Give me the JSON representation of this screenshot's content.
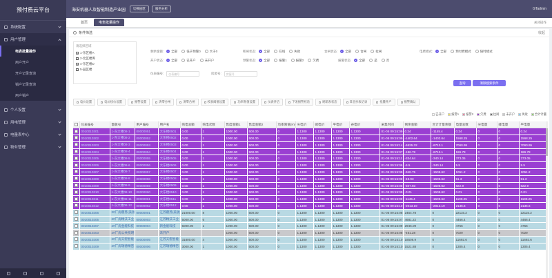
{
  "app": {
    "logo": "预付费云平台",
    "org": "海安机器人及智能制造产业园",
    "btn_switch": "切换园区",
    "btn_time": "服务分析",
    "user": "GTadmin"
  },
  "sidebar": {
    "items": [
      "系统配置",
      "用户管理",
      "个人设置",
      "用电管理",
      "电量表中心",
      "物业管理"
    ],
    "subitems": [
      "电表批量操作",
      "用户开户",
      "开户记录查询",
      "销户记录查询",
      "用户销户"
    ]
  },
  "tabs": {
    "home": "首页",
    "active": "电表批量操作",
    "close_all": "关闭操作"
  },
  "filter": {
    "head": "条件筛选",
    "collapse": "收起",
    "tree_title": "请选择区域",
    "tree": [
      "1-东区楼A",
      "2-北区楼库",
      "4-东区楼D",
      "5-园区楼"
    ],
    "row1": {
      "l1": "剩余金额:",
      "o1": [
        "全部",
        "低于预警0",
        "大于0"
      ],
      "l2": "断闸状态:",
      "o2": [
        "全部",
        "在线",
        "失败"
      ],
      "l3": "合闸状态:",
      "o3": [
        "全部",
        "合闸",
        "拉闸"
      ],
      "l4": "电费模式:",
      "o4": [
        "全部",
        "预付费模式",
        "随时模式"
      ]
    },
    "row2": {
      "l1": "开户状态:",
      "o1": [
        "全部",
        "已开户",
        "未开户"
      ],
      "l2": "预警状态:",
      "o2": [
        "全部",
        "报警1",
        "报警2",
        "欠费"
      ],
      "l3": "报警状态:",
      "o3": [
        "全部",
        "是",
        "否"
      ]
    },
    "row3": {
      "l1": "仪表编号:",
      "p1": "仪表编号",
      "l2": "房屋号:",
      "p2": "房屋号"
    },
    "search": "查询",
    "clear": "清除搜索条件"
  },
  "toolbar": [
    "电价设置",
    "电价核价设置",
    "报警设置",
    "清零分闸",
    "清零合闸",
    "校表阈值设置",
    "功率限值设置",
    "仪表开启",
    "下发报警校验",
    "刷新表状态",
    "日志抄表记录",
    "批量开户",
    "报警确认"
  ],
  "legend": [
    "已开户",
    "报警1",
    "报警2",
    "欠费",
    "拉闸",
    "未开户",
    "失败",
    "合计计量"
  ],
  "table": {
    "headers": [
      "仪表编号",
      "面板号",
      "用户编号",
      "用户名",
      "购电总额",
      "购电次数",
      "售度金额1",
      "售度金额2",
      "功率限值(KW)",
      "尖电价",
      "峰电价",
      "平电价",
      "谷电价",
      "采集时间",
      "剩余金额",
      "合计计量余额",
      "电量总数",
      "尖电量",
      "峰电量",
      "平电量"
    ],
    "rows": [
      {
        "c": "purple",
        "v": [
          "0010010301",
          "1-东大楼08-1",
          "00000051",
          "大东楼0501",
          "0.00",
          "1",
          "1000.00",
          "500.00",
          "0",
          "1.1300",
          "1.1300",
          "1.1300",
          "1.1300",
          "01-05 09:15:09",
          "0.24",
          "-1145.4",
          "0.24",
          "0",
          "0",
          "0.24"
        ]
      },
      {
        "c": "purple",
        "v": [
          "0010010302",
          "1-东大楼08-2",
          "00000052",
          "大东楼0502",
          "0.00",
          "1",
          "1000.00",
          "500.00",
          "0",
          "1.1300",
          "1.1300",
          "1.1300",
          "1.1300",
          "01-05 09:15:09",
          "-1402.64",
          "-1402.64",
          "1568.25",
          "0",
          "0",
          "1568.25"
        ]
      },
      {
        "c": "purple",
        "v": [
          "0010010303",
          "1-东大楼08-3",
          "00000053",
          "大东楼0503",
          "0.00",
          "1",
          "1000.00",
          "500.00",
          "0",
          "1.1300",
          "1.1300",
          "1.1300",
          "1.1300",
          "01-05 09:15:14",
          "-6525.32",
          "-6712.1",
          "7060.95",
          "0",
          "0",
          "7060.95"
        ]
      },
      {
        "c": "purple",
        "v": [
          "0010010304",
          "1-东大楼08-4",
          "00000054",
          "大东楼0504",
          "0.00",
          "1",
          "1000.00",
          "500.00",
          "0",
          "1.1300",
          "1.1300",
          "1.1300",
          "1.1300",
          "01-05 09:15:07",
          "-186.78",
          "-6712.1",
          "186.78",
          "0",
          "0",
          "186.78"
        ]
      },
      {
        "c": "purple",
        "v": [
          "0010010305",
          "1-东大楼08-5",
          "00000055",
          "大东楼0505",
          "0.00",
          "1",
          "1000.00",
          "500.00",
          "0",
          "1.1300",
          "1.1300",
          "1.1300",
          "1.1300",
          "01-05 09:15:11",
          "-334.64",
          "-340.14",
          "373.05",
          "0",
          "0",
          "373.05"
        ]
      },
      {
        "c": "purple",
        "v": [
          "0010010306",
          "1-东大楼08-6",
          "00000056",
          "大东楼0506",
          "0.00",
          "1",
          "1000.00",
          "500.00",
          "0",
          "1.1300",
          "1.1300",
          "1.1300",
          "1.1300",
          "01-05 09:15:06",
          "-5.5",
          "-340.14",
          "5.5",
          "0",
          "0",
          "5.5"
        ]
      },
      {
        "c": "purple",
        "v": [
          "0010010307",
          "1-东大楼08-7",
          "00000057",
          "大东楼0507",
          "0.00",
          "1",
          "1000.00",
          "500.00",
          "0",
          "1.1300",
          "1.1300",
          "1.1300",
          "1.1300",
          "01-05 09:15:09",
          "-948.75",
          "-1505.62",
          "1051.2",
          "0",
          "0",
          "1051.2"
        ]
      },
      {
        "c": "purple",
        "v": [
          "0010010308",
          "1-东大楼08-8",
          "00000058",
          "大东楼0508",
          "0.00",
          "1",
          "1000.00",
          "500.00",
          "0",
          "1.1300",
          "1.1300",
          "1.1300",
          "1.1300",
          "01-05 09:15:08",
          "-48.93",
          "-1505.62",
          "51.3",
          "0",
          "0",
          "51.3"
        ]
      },
      {
        "c": "purple",
        "v": [
          "0010010309",
          "1-东大楼08-9",
          "00000059",
          "大东楼0509",
          "0.00",
          "1",
          "1000.00",
          "500.00",
          "0",
          "1.1300",
          "1.1300",
          "1.1300",
          "1.1300",
          "01-05 09:15:08",
          "-507.93",
          "-1505.62",
          "822.9",
          "0",
          "0",
          "822.9"
        ]
      },
      {
        "c": "purple",
        "v": [
          "0010010310",
          "1-东大楼08-10",
          "00000060",
          "大东楼0510",
          "0.00",
          "1",
          "1000.00",
          "500.00",
          "0",
          "1.1300",
          "1.1300",
          "1.1300",
          "1.1300",
          "01-05 09:15:09",
          "-0.01",
          "-1505.62",
          "0.01",
          "0",
          "0",
          "0.01"
        ]
      },
      {
        "c": "purple",
        "v": [
          "0010010311",
          "1-东大楼08-11",
          "00000061",
          "大东楼0511",
          "0.00",
          "1",
          "1000.00",
          "500.00",
          "0",
          "1.1300",
          "1.1300",
          "1.1300",
          "1.1300",
          "01-05 09:15:09",
          "-1145.4",
          "-1505.62",
          "1199.25",
          "0",
          "0",
          "1199.25"
        ]
      },
      {
        "c": "purple",
        "v": [
          "0010010312",
          "1-东大楼08-12",
          "00000062",
          "大东楼0512",
          "0.00",
          "1",
          "1000.00",
          "500.00",
          "0",
          "1.1300",
          "1.1300",
          "1.1300",
          "1.1300",
          "01-05 09:15:10",
          "-2013.19",
          "-2013.19",
          "2136.6",
          "0",
          "0",
          "2136.6"
        ]
      },
      {
        "c": "teal",
        "v": [
          "0010010206",
          "2#厂房霍苏(美锐",
          "00000001",
          "江苏霍苏(美锐",
          "21000.00",
          "8",
          "1000.00",
          "500.00",
          "0",
          "1.1300",
          "1.1300",
          "1.1300",
          "1.1300",
          "01-05 09:15:08",
          "2454.78",
          "0",
          "22115.2",
          "0",
          "0",
          "22115.2"
        ]
      },
      {
        "c": "teal",
        "v": [
          "0010010205",
          "2#厂房精沃工业",
          "00000003",
          "江苏精沃工业",
          "5000.00",
          "6",
          "1000.00",
          "500.00",
          "0",
          "1.1300",
          "1.1300",
          "1.1300",
          "1.1300",
          "01-05 09:15:07",
          "4681.22",
          "0",
          "4466.4",
          "0",
          "0",
          "4466.4"
        ]
      },
      {
        "c": "teal",
        "v": [
          "0010010207",
          "2#厂房金能科技",
          "00000004",
          "新金能科技",
          "5000.00",
          "1",
          "1000.00",
          "500.00",
          "0",
          "1.1300",
          "1.1300",
          "1.1300",
          "1.1300",
          "01-05 09:15:09",
          "2946.09",
          "0",
          "4756",
          "0",
          "0",
          "4756"
        ]
      },
      {
        "c": "gray",
        "v": [
          "0010010203",
          "2#厂房公共照明",
          "",
          "未开户",
          "",
          "",
          "1000.00",
          "500.00",
          "0",
          "1.1300",
          "1.1300",
          "1.1300",
          "1.1300",
          "01-05 09:15:08",
          "-461.28",
          "0",
          "7029",
          "0",
          "0",
          "7029"
        ]
      },
      {
        "c": "teal",
        "v": [
          "0010010208",
          "2#厂房天宏智能",
          "00000005",
          "江苏天宏智能",
          "31800.00",
          "4",
          "1000.00",
          "500.00",
          "0",
          "1.1300",
          "1.1300",
          "1.1300",
          "1.1300",
          "01-05 09:15:10",
          "18506.9",
          "0",
          "11692.6",
          "0",
          "0",
          "11692.6"
        ]
      },
      {
        "c": "teal",
        "v": [
          "0010010209",
          "2#厂房瑞德精密",
          "00000006",
          "江苏瑞德精密",
          "3000.00",
          "1",
          "1000.00",
          "500.00",
          "0",
          "1.1300",
          "1.1300",
          "1.1300",
          "1.1300",
          "01-05 09:15:10",
          "1521.88",
          "0",
          "1305.4",
          "0",
          "0",
          "1305.4"
        ]
      }
    ]
  },
  "colors": {
    "sidebar": "#3a3a56",
    "accent": "#7b6ff0",
    "row_purple": "#9a3fd2",
    "row_teal": "#b8d9e3",
    "row_gray": "#c9c9cc"
  }
}
